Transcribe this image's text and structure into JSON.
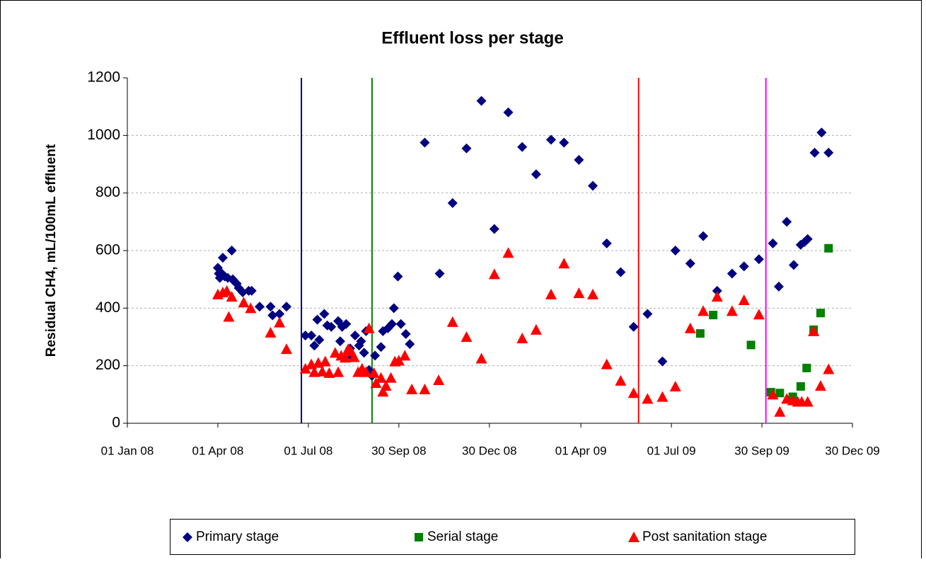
{
  "chart_data": {
    "type": "scatter",
    "title": "Effluent loss per stage",
    "y_label": "Residual CH4, mL/100mL effluent",
    "xlim": [
      "2008-01-01",
      "2009-12-30"
    ],
    "xticks": [
      {
        "value": "2008-01-01",
        "label": "01 Jan 08"
      },
      {
        "value": "2008-04-01",
        "label": "01 Apr 08"
      },
      {
        "value": "2008-07-01",
        "label": "01 Jul 08"
      },
      {
        "value": "2008-09-30",
        "label": "30 Sep 08"
      },
      {
        "value": "2008-12-30",
        "label": "30 Dec 08"
      },
      {
        "value": "2009-04-01",
        "label": "01 Apr 09"
      },
      {
        "value": "2009-07-01",
        "label": "01 Jul 09"
      },
      {
        "value": "2009-09-30",
        "label": "30 Sep 09"
      },
      {
        "value": "2009-12-30",
        "label": "30 Dec 09"
      }
    ],
    "ylim": [
      0,
      1200
    ],
    "yticks": [
      0,
      200,
      400,
      600,
      800,
      1000,
      1200
    ],
    "grid": true,
    "legend": "bottom",
    "vlines": [
      {
        "x": "2008-06-24",
        "color": "#000080"
      },
      {
        "x": "2008-09-03",
        "color": "#008000"
      },
      {
        "x": "2009-05-29",
        "color": "#ff0000"
      },
      {
        "x": "2009-10-04",
        "color": "#ff00ff"
      }
    ],
    "series": [
      {
        "name": "Primary stage",
        "color": "#000080",
        "marker": "diamond",
        "x": [
          "2008-04-01",
          "2008-04-02",
          "2008-04-03",
          "2008-04-05",
          "2008-04-06",
          "2008-04-08",
          "2008-04-11",
          "2008-04-15",
          "2008-04-16",
          "2008-04-17",
          "2008-04-20",
          "2008-04-22",
          "2008-04-26",
          "2008-05-02",
          "2008-05-05",
          "2008-05-13",
          "2008-05-24",
          "2008-05-26",
          "2008-06-02",
          "2008-06-09",
          "2008-06-28",
          "2008-07-04",
          "2008-07-07",
          "2008-07-10",
          "2008-07-12",
          "2008-07-17",
          "2008-07-20",
          "2008-07-24",
          "2008-07-31",
          "2008-08-02",
          "2008-08-04",
          "2008-08-08",
          "2008-08-12",
          "2008-08-14",
          "2008-08-17",
          "2008-08-21",
          "2008-08-23",
          "2008-08-26",
          "2008-08-28",
          "2008-08-31",
          "2008-09-03",
          "2008-09-06",
          "2008-09-12",
          "2008-09-14",
          "2008-09-19",
          "2008-09-23",
          "2008-09-25",
          "2008-09-29",
          "2008-10-02",
          "2008-10-07",
          "2008-10-11",
          "2008-10-26",
          "2008-11-10",
          "2008-11-23",
          "2008-12-07",
          "2008-12-22",
          "2009-01-04",
          "2009-01-18",
          "2009-02-01",
          "2009-02-15",
          "2009-03-02",
          "2009-03-15",
          "2009-03-30",
          "2009-04-13",
          "2009-04-27",
          "2009-05-11",
          "2009-05-24",
          "2009-06-07",
          "2009-06-22",
          "2009-07-05",
          "2009-07-20",
          "2009-08-02",
          "2009-08-16",
          "2009-08-31",
          "2009-09-12",
          "2009-09-27",
          "2009-10-11",
          "2009-10-17",
          "2009-10-25",
          "2009-11-01",
          "2009-11-08",
          "2009-11-12",
          "2009-11-15",
          "2009-11-22",
          "2009-11-29",
          "2009-12-06"
        ],
        "values": [
          540,
          520,
          505,
          520,
          575,
          510,
          505,
          600,
          500,
          495,
          485,
          470,
          455,
          460,
          460,
          405,
          405,
          375,
          380,
          405,
          305,
          305,
          270,
          360,
          290,
          380,
          340,
          335,
          355,
          285,
          335,
          345,
          260,
          230,
          305,
          270,
          285,
          245,
          320,
          185,
          165,
          235,
          265,
          320,
          330,
          345,
          400,
          510,
          345,
          310,
          275,
          975,
          520,
          765,
          955,
          1120,
          675,
          1080,
          960,
          865,
          985,
          975,
          915,
          825,
          625,
          525,
          335,
          380,
          215,
          600,
          555,
          650,
          460,
          520,
          545,
          570,
          625,
          475,
          700,
          550,
          620,
          630,
          640,
          940,
          1010,
          940
        ]
      },
      {
        "name": "Serial stage",
        "color": "#008000",
        "marker": "square",
        "x": [
          "2009-07-30",
          "2009-08-12",
          "2009-09-19",
          "2009-10-09",
          "2009-10-18",
          "2009-10-31",
          "2009-11-08",
          "2009-11-14",
          "2009-11-21",
          "2009-11-28",
          "2009-12-06"
        ],
        "values": [
          312,
          376,
          272,
          108,
          105,
          92,
          128,
          192,
          325,
          383,
          608
        ]
      },
      {
        "name": "Post sanitation stage",
        "color": "#ff0000",
        "marker": "triangle",
        "x": [
          "2008-04-01",
          "2008-04-06",
          "2008-04-10",
          "2008-04-12",
          "2008-04-15",
          "2008-04-27",
          "2008-05-04",
          "2008-05-24",
          "2008-06-02",
          "2008-06-09",
          "2008-06-28",
          "2008-07-04",
          "2008-07-07",
          "2008-07-11",
          "2008-07-15",
          "2008-07-18",
          "2008-07-22",
          "2008-07-28",
          "2008-07-31",
          "2008-08-03",
          "2008-08-07",
          "2008-08-10",
          "2008-08-13",
          "2008-08-16",
          "2008-08-20",
          "2008-08-24",
          "2008-08-28",
          "2008-08-31",
          "2008-09-05",
          "2008-09-07",
          "2008-09-12",
          "2008-09-14",
          "2008-09-17",
          "2008-09-22",
          "2008-09-26",
          "2008-09-30",
          "2008-10-06",
          "2008-10-13",
          "2008-10-26",
          "2008-11-09",
          "2008-11-23",
          "2008-12-07",
          "2008-12-22",
          "2009-01-04",
          "2009-01-18",
          "2009-02-01",
          "2009-02-15",
          "2009-03-02",
          "2009-03-15",
          "2009-03-30",
          "2009-04-13",
          "2009-04-27",
          "2009-05-11",
          "2009-05-24",
          "2009-06-07",
          "2009-06-22",
          "2009-07-05",
          "2009-07-20",
          "2009-08-02",
          "2009-08-16",
          "2009-08-31",
          "2009-09-12",
          "2009-09-27",
          "2009-10-11",
          "2009-10-18",
          "2009-10-25",
          "2009-10-31",
          "2009-11-05",
          "2009-11-09",
          "2009-11-15",
          "2009-11-21",
          "2009-11-28",
          "2009-12-06"
        ],
        "values": [
          448,
          455,
          460,
          370,
          440,
          420,
          400,
          315,
          350,
          258,
          190,
          205,
          178,
          210,
          180,
          215,
          175,
          245,
          178,
          235,
          228,
          258,
          250,
          230,
          178,
          190,
          178,
          330,
          175,
          140,
          158,
          110,
          130,
          158,
          215,
          218,
          235,
          118,
          118,
          150,
          352,
          300,
          225,
          518,
          592,
          295,
          325,
          448,
          555,
          452,
          448,
          205,
          148,
          105,
          85,
          92,
          128,
          330,
          390,
          440,
          390,
          428,
          378,
          100,
          40,
          85,
          80,
          75,
          75,
          75,
          320,
          130,
          188
        ]
      }
    ]
  }
}
